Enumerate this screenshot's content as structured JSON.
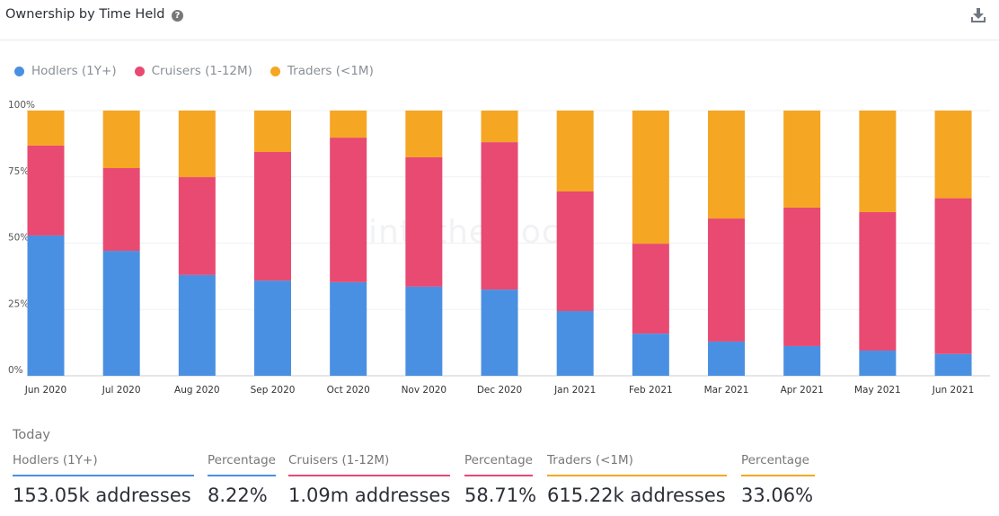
{
  "header": {
    "title": "Ownership by Time Held",
    "help_icon": "question-circle-icon",
    "download_icon": "download-icon"
  },
  "watermark": "intotheblock",
  "chart_data": {
    "type": "bar",
    "stacked": true,
    "categories": [
      "Jun 2020",
      "Jul 2020",
      "Aug 2020",
      "Sep 2020",
      "Oct 2020",
      "Nov 2020",
      "Dec 2020",
      "Jan 2021",
      "Feb 2021",
      "Mar 2021",
      "Apr 2021",
      "May 2021",
      "Jun 2021"
    ],
    "series": [
      {
        "name": "Hodlers (1Y+)",
        "color": "#4a90e2",
        "values": [
          52.9,
          47.1,
          38.0,
          35.9,
          35.3,
          33.6,
          32.5,
          24.4,
          15.9,
          12.9,
          11.2,
          9.5,
          8.22
        ]
      },
      {
        "name": "Cruisers (1-12M)",
        "color": "#e84a72",
        "values": [
          33.9,
          31.2,
          36.9,
          48.5,
          54.5,
          48.8,
          55.6,
          45.1,
          33.9,
          46.4,
          52.2,
          52.2,
          58.71
        ]
      },
      {
        "name": "Traders (<1M)",
        "color": "#f5a623",
        "values": [
          13.2,
          21.7,
          25.1,
          15.6,
          10.2,
          17.6,
          11.9,
          30.5,
          50.2,
          40.7,
          36.6,
          38.3,
          33.06
        ]
      }
    ],
    "yticks": [
      "0%",
      "25%",
      "50%",
      "75%",
      "100%"
    ],
    "ylim": [
      0,
      100
    ],
    "grid": true,
    "legend": "top-left"
  },
  "today": {
    "label": "Today",
    "stats": [
      {
        "label": "Hodlers (1Y+)",
        "value": "153.05k addresses",
        "color": "#4a90e2"
      },
      {
        "label": "Percentage",
        "value": "8.22%",
        "color": "#4a90e2"
      },
      {
        "label": "Cruisers (1-12M)",
        "value": "1.09m addresses",
        "color": "#e84a72"
      },
      {
        "label": "Percentage",
        "value": "58.71%",
        "color": "#e84a72"
      },
      {
        "label": "Traders (<1M)",
        "value": "615.22k addresses",
        "color": "#f5a623"
      },
      {
        "label": "Percentage",
        "value": "33.06%",
        "color": "#f5a623"
      }
    ]
  }
}
